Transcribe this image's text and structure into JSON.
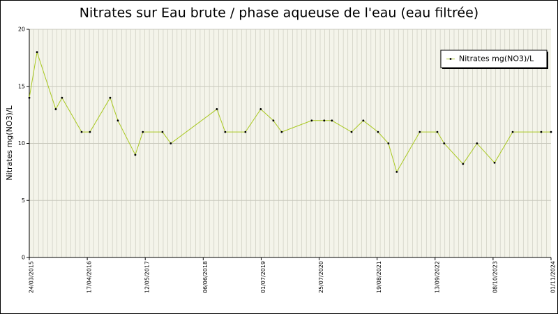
{
  "chart_data": {
    "type": "line",
    "title": "Nitrates sur Eau brute / phase aqueuse de l'eau (eau filtrée)",
    "y_label": "Nitrates mg(NO3)/L",
    "x": [
      "2015-03-24",
      "2015-05-15",
      "2015-09-18",
      "2015-10-30",
      "2016-03-10",
      "2016-05-05",
      "2016-09-18",
      "2016-11-09",
      "2017-03-06",
      "2017-04-26",
      "2017-09-05",
      "2017-10-31",
      "2018-09-06",
      "2018-11-01",
      "2019-03-17",
      "2019-06-28",
      "2019-09-21",
      "2019-11-16",
      "2020-06-05",
      "2020-08-28",
      "2020-10-19",
      "2021-02-28",
      "2021-05-18",
      "2021-08-25",
      "2021-11-03",
      "2021-12-29",
      "2022-06-02",
      "2022-09-28",
      "2022-11-13",
      "2023-03-20",
      "2023-06-22",
      "2023-10-18",
      "2024-02-17",
      "2024-08-27",
      "2024-11-01"
    ],
    "series": [
      {
        "name": "Nitrates mg(NO3)/L",
        "color": "#a8c81e",
        "values": [
          14,
          18,
          13,
          14,
          11,
          11,
          14,
          12,
          9,
          11,
          11,
          10,
          13,
          11,
          11,
          13,
          12,
          11,
          12,
          12,
          12,
          11,
          12,
          11,
          10,
          7.5,
          11,
          11,
          10,
          8.2,
          10,
          8.3,
          11,
          11,
          11
        ]
      }
    ],
    "xlim": [
      "2015-03-24",
      "2024-11-01"
    ],
    "xticks": [
      {
        "value": "2015-03-24",
        "label": "24/03/2015"
      },
      {
        "value": "2016-04-17",
        "label": "17/04/2016"
      },
      {
        "value": "2017-05-12",
        "label": "12/05/2017"
      },
      {
        "value": "2018-06-06",
        "label": "06/06/2018"
      },
      {
        "value": "2019-07-01",
        "label": "01/07/2019"
      },
      {
        "value": "2020-07-25",
        "label": "25/07/2020"
      },
      {
        "value": "2021-08-19",
        "label": "19/08/2021"
      },
      {
        "value": "2022-09-13",
        "label": "13/09/2022"
      },
      {
        "value": "2023-10-08",
        "label": "08/10/2023"
      },
      {
        "value": "2024-11-01",
        "label": "01/11/2024"
      }
    ],
    "ylim": [
      0,
      20
    ],
    "yticks": [
      0,
      5,
      10,
      15,
      20
    ],
    "grid": true,
    "legend": "top-right"
  }
}
